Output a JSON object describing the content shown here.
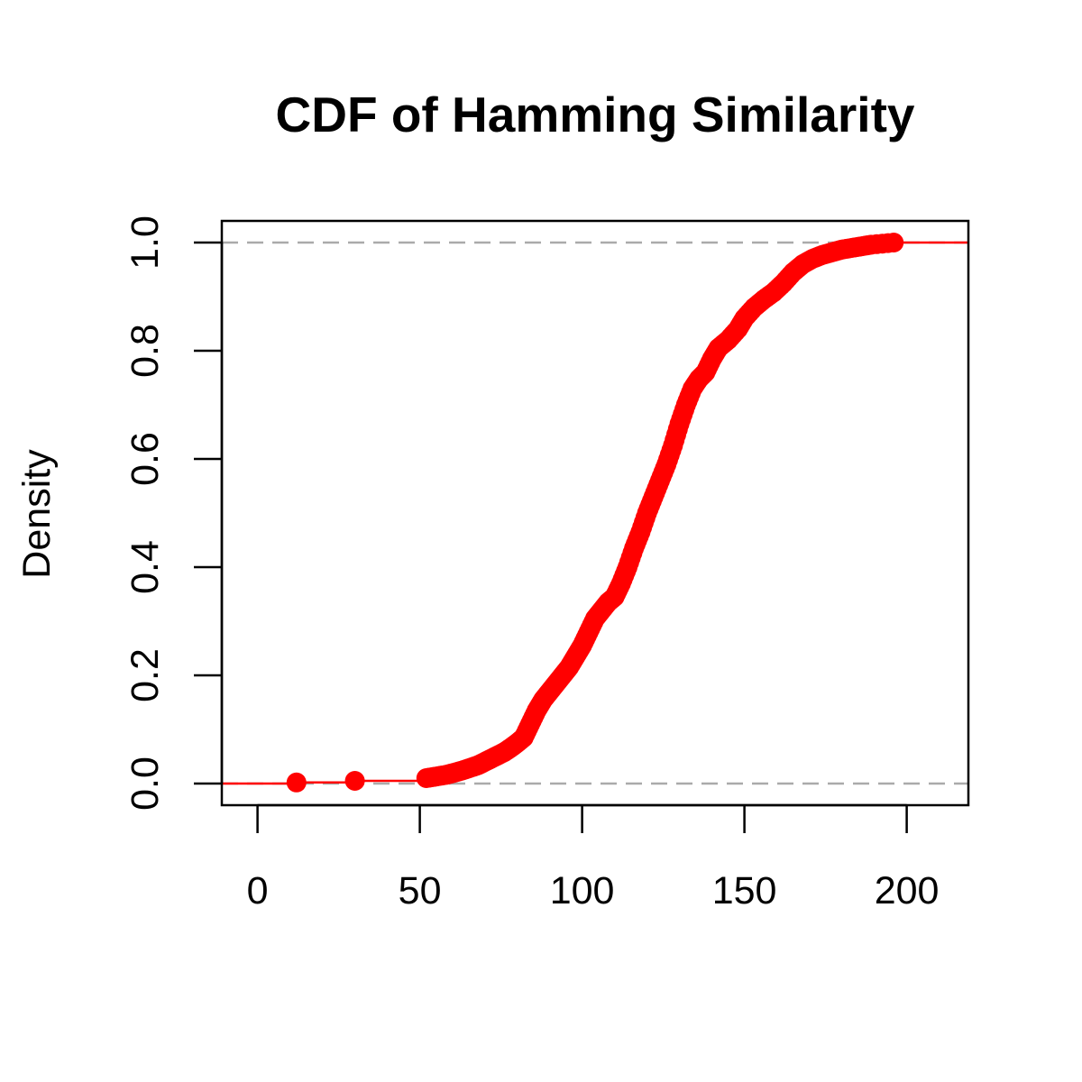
{
  "chart_data": {
    "type": "scatter",
    "title": "CDF of Hamming Similarity",
    "xlabel": "",
    "ylabel": "Density",
    "xlim": [
      -11,
      219
    ],
    "ylim": [
      -0.04,
      1.04
    ],
    "x_ticks": [
      0,
      50,
      100,
      150,
      200
    ],
    "y_ticks": [
      0.0,
      0.2,
      0.4,
      0.6,
      0.8,
      1.0
    ],
    "x_tick_labels": [
      "0",
      "50",
      "100",
      "150",
      "200"
    ],
    "y_tick_labels": [
      "0.0",
      "0.2",
      "0.4",
      "0.6",
      "0.8",
      "1.0"
    ],
    "grid": false,
    "reference_lines": [
      0,
      1
    ],
    "reference_line_color": "#aaaaaa",
    "series": [
      {
        "color": "#ff0000",
        "style": "step with filled points",
        "points": [
          [
            12,
            0.002
          ],
          [
            30,
            0.005
          ],
          [
            52,
            0.01
          ],
          [
            55,
            0.013
          ],
          [
            58,
            0.016
          ],
          [
            60,
            0.019
          ],
          [
            63,
            0.024
          ],
          [
            66,
            0.03
          ],
          [
            68,
            0.034
          ],
          [
            70,
            0.04
          ],
          [
            72,
            0.046
          ],
          [
            74,
            0.052
          ],
          [
            76,
            0.058
          ],
          [
            78,
            0.066
          ],
          [
            80,
            0.075
          ],
          [
            82,
            0.085
          ],
          [
            84,
            0.11
          ],
          [
            86,
            0.135
          ],
          [
            88,
            0.155
          ],
          [
            90,
            0.17
          ],
          [
            92,
            0.185
          ],
          [
            94,
            0.2
          ],
          [
            96,
            0.215
          ],
          [
            98,
            0.235
          ],
          [
            100,
            0.255
          ],
          [
            102,
            0.28
          ],
          [
            104,
            0.305
          ],
          [
            106,
            0.32
          ],
          [
            108,
            0.335
          ],
          [
            110,
            0.345
          ],
          [
            112,
            0.37
          ],
          [
            114,
            0.4
          ],
          [
            116,
            0.435
          ],
          [
            118,
            0.465
          ],
          [
            120,
            0.5
          ],
          [
            122,
            0.53
          ],
          [
            124,
            0.56
          ],
          [
            126,
            0.59
          ],
          [
            128,
            0.625
          ],
          [
            130,
            0.665
          ],
          [
            132,
            0.7
          ],
          [
            134,
            0.73
          ],
          [
            136,
            0.748
          ],
          [
            138,
            0.76
          ],
          [
            140,
            0.785
          ],
          [
            142,
            0.805
          ],
          [
            145,
            0.82
          ],
          [
            148,
            0.84
          ],
          [
            150,
            0.86
          ],
          [
            153,
            0.88
          ],
          [
            156,
            0.895
          ],
          [
            159,
            0.908
          ],
          [
            162,
            0.925
          ],
          [
            165,
            0.945
          ],
          [
            168,
            0.96
          ],
          [
            171,
            0.97
          ],
          [
            174,
            0.977
          ],
          [
            177,
            0.982
          ],
          [
            180,
            0.987
          ],
          [
            183,
            0.99
          ],
          [
            186,
            0.993
          ],
          [
            189,
            0.996
          ],
          [
            196,
            1.0
          ]
        ]
      }
    ]
  }
}
